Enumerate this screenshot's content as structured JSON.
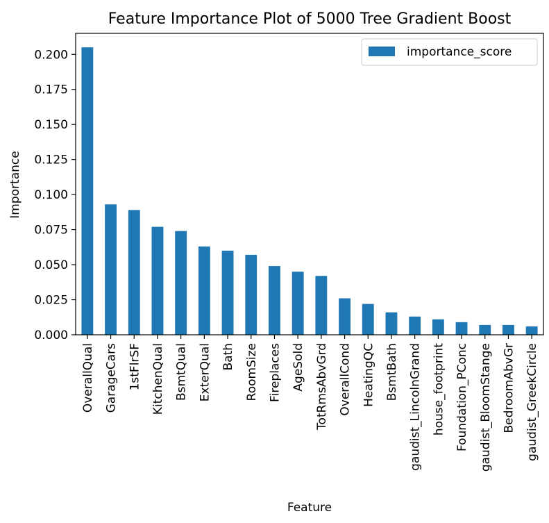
{
  "chart_data": {
    "type": "bar",
    "title": "Feature Importance Plot of 5000 Tree Gradient Boost",
    "xlabel": "Feature",
    "ylabel": "Importance",
    "ylim": [
      0,
      0.215
    ],
    "yticks": [
      "0.000",
      "0.025",
      "0.050",
      "0.075",
      "0.100",
      "0.125",
      "0.150",
      "0.175",
      "0.200"
    ],
    "grid": false,
    "legend_position": "top-right",
    "categories": [
      "OverallQual",
      "GarageCars",
      "1stFlrSF",
      "KitchenQual",
      "BsmtQual",
      "ExterQual",
      "Bath",
      "RoomSize",
      "Fireplaces",
      "AgeSold",
      "TotRmsAbvGrd",
      "OverallCond",
      "HeatingQC",
      "BsmtBath",
      "gaudist_LincolnGrand",
      "house_footprint",
      "Foundation_PConc",
      "gaudist_BloomStange",
      "BedroomAbvGr",
      "gaudist_GreekCircle"
    ],
    "series": [
      {
        "name": "importance_score",
        "color": "#1f77b4",
        "values": [
          0.205,
          0.093,
          0.089,
          0.077,
          0.074,
          0.063,
          0.06,
          0.057,
          0.049,
          0.045,
          0.042,
          0.026,
          0.022,
          0.016,
          0.013,
          0.011,
          0.009,
          0.007,
          0.007,
          0.006
        ]
      }
    ]
  }
}
